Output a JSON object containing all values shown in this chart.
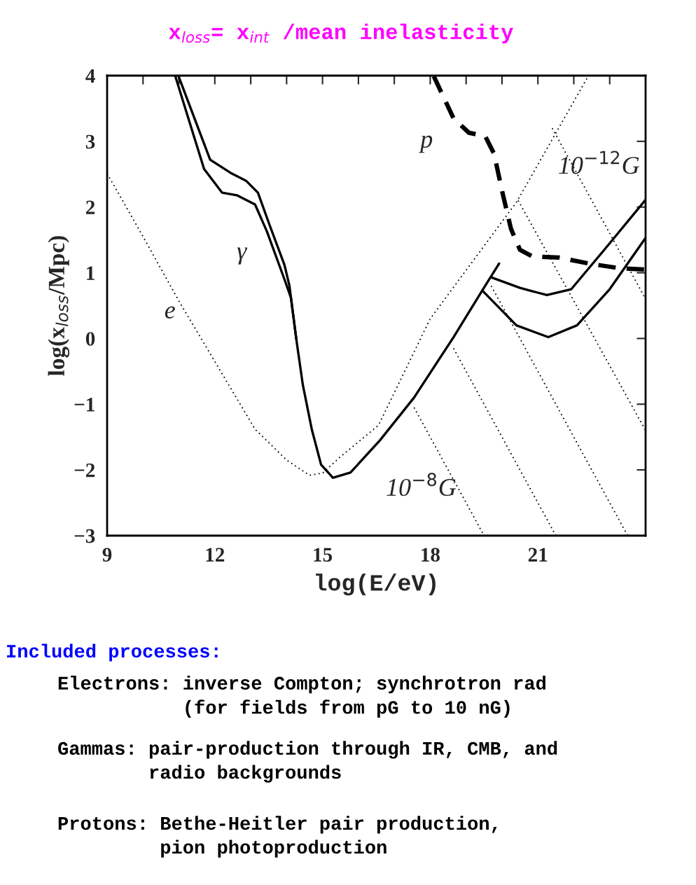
{
  "chart_data": {
    "type": "line",
    "title": "x$_{loss}$= x$_{int}$ /mean inelasticity",
    "xlabel": "log(E/eV)",
    "ylabel": "log(x$_{loss}$/Mpc)",
    "xlim": [
      9,
      24
    ],
    "ylim": [
      -3,
      4
    ],
    "xticks": [
      9,
      {
        "value": 10,
        "label": null
      },
      {
        "value": 11,
        "label": null
      },
      12,
      {
        "value": 13,
        "label": null
      },
      {
        "value": 14,
        "label": null
      },
      15,
      {
        "value": 16,
        "label": null
      },
      {
        "value": 17,
        "label": null
      },
      18,
      {
        "value": 19,
        "label": null
      },
      {
        "value": 20,
        "label": null
      },
      21,
      {
        "value": 22,
        "label": null
      },
      {
        "value": 23,
        "label": null
      }
    ],
    "yticks": [
      {
        "value": -3,
        "label": "−3"
      },
      {
        "value": -2,
        "label": "−2"
      },
      {
        "value": -1,
        "label": "−1"
      },
      0,
      1,
      2,
      3,
      4
    ],
    "grid": false,
    "legend": false,
    "series": [
      {
        "name": "e",
        "color": "#000000",
        "line_style": "dotted",
        "x": [
          9,
          10,
          11.03,
          12,
          13.12,
          14,
          14.63,
          15,
          15.5,
          16.56,
          18,
          20.41,
          22.4
        ],
        "values": [
          2.51,
          1.55,
          0.54,
          -0.35,
          -1.38,
          -1.85,
          -2.08,
          -2.05,
          -1.8,
          -1.32,
          0.3,
          2.08,
          3.99
        ]
      },
      {
        "name": "10$^{−8}$G",
        "color": "#000000",
        "line_style": "dotted",
        "x": [
          17.55,
          19.5
        ],
        "values": [
          -1.05,
          -3
        ]
      },
      {
        "color": "#000000",
        "line_style": "dotted",
        "x": [
          18.65,
          21.5
        ],
        "values": [
          -0.15,
          -3
        ]
      },
      {
        "color": "#000000",
        "line_style": "dotted",
        "x": [
          19.7,
          23.5
        ],
        "values": [
          0.8,
          -3
        ]
      },
      {
        "color": "#000000",
        "line_style": "dotted",
        "x": [
          20.45,
          24
        ],
        "values": [
          2.1,
          -1.4
        ]
      },
      {
        "name": "10$^{−12}$G",
        "color": "#000000",
        "line_style": "dotted",
        "x": [
          21.4,
          24
        ],
        "values": [
          3.2,
          0.6
        ]
      },
      {
        "name": "γ",
        "color": "#000000",
        "line_style": "solid",
        "x": [
          10.99,
          11.87,
          12.44,
          12.87,
          13.2,
          13.53,
          13.94,
          14.08,
          14.27,
          14.45,
          14.7,
          14.96,
          15.29,
          15.78,
          16.6,
          17.55,
          18.65,
          19.45,
          19.92
        ],
        "values": [
          3.99,
          2.72,
          2.52,
          2.4,
          2.22,
          1.72,
          1.12,
          0.8,
          -0.01,
          -0.7,
          -1.38,
          -1.92,
          -2.12,
          -2.04,
          -1.55,
          -0.9,
          0.02,
          0.73,
          1.14
        ]
      },
      {
        "color": "#000000",
        "line_style": "solid",
        "x": [
          10.9,
          11.7,
          12.2,
          12.61,
          13.12,
          13.45,
          13.94,
          14.12,
          14.27
        ],
        "values": [
          3.99,
          2.58,
          2.22,
          2.18,
          2.04,
          1.63,
          0.9,
          0.62,
          -0.01
        ]
      },
      {
        "color": "#000000",
        "line_style": "solid",
        "x": [
          19.7,
          20.5,
          21.25,
          21.93,
          22.85,
          24.0
        ],
        "values": [
          0.93,
          0.77,
          0.66,
          0.75,
          1.35,
          2.11
        ]
      },
      {
        "color": "#000000",
        "line_style": "solid",
        "x": [
          19.45,
          20.4,
          21.29,
          22.09,
          23.0,
          24.0
        ],
        "values": [
          0.73,
          0.2,
          0.02,
          0.2,
          0.75,
          1.53
        ]
      },
      {
        "name": "p",
        "color": "#000000",
        "line_style": "dashed",
        "x": [
          18.1,
          18.65,
          19.08,
          19.53,
          19.78,
          20.0,
          20.25,
          20.5,
          20.84,
          21.6,
          22.42,
          23.26,
          24.0
        ],
        "values": [
          3.99,
          3.35,
          3.13,
          3.08,
          2.81,
          2.25,
          1.67,
          1.35,
          1.25,
          1.23,
          1.14,
          1.07,
          1.05
        ]
      }
    ],
    "annotations": [
      "Included processes:",
      "Electrons: inverse Compton; synchrotron rad\n           (for fields from pG to 10 nG)",
      "Gammas: pair-production through IR, CMB, and\n        radio backgrounds",
      "Protons: Bethe-Heitler pair production,\n         pion photoproduction"
    ]
  }
}
